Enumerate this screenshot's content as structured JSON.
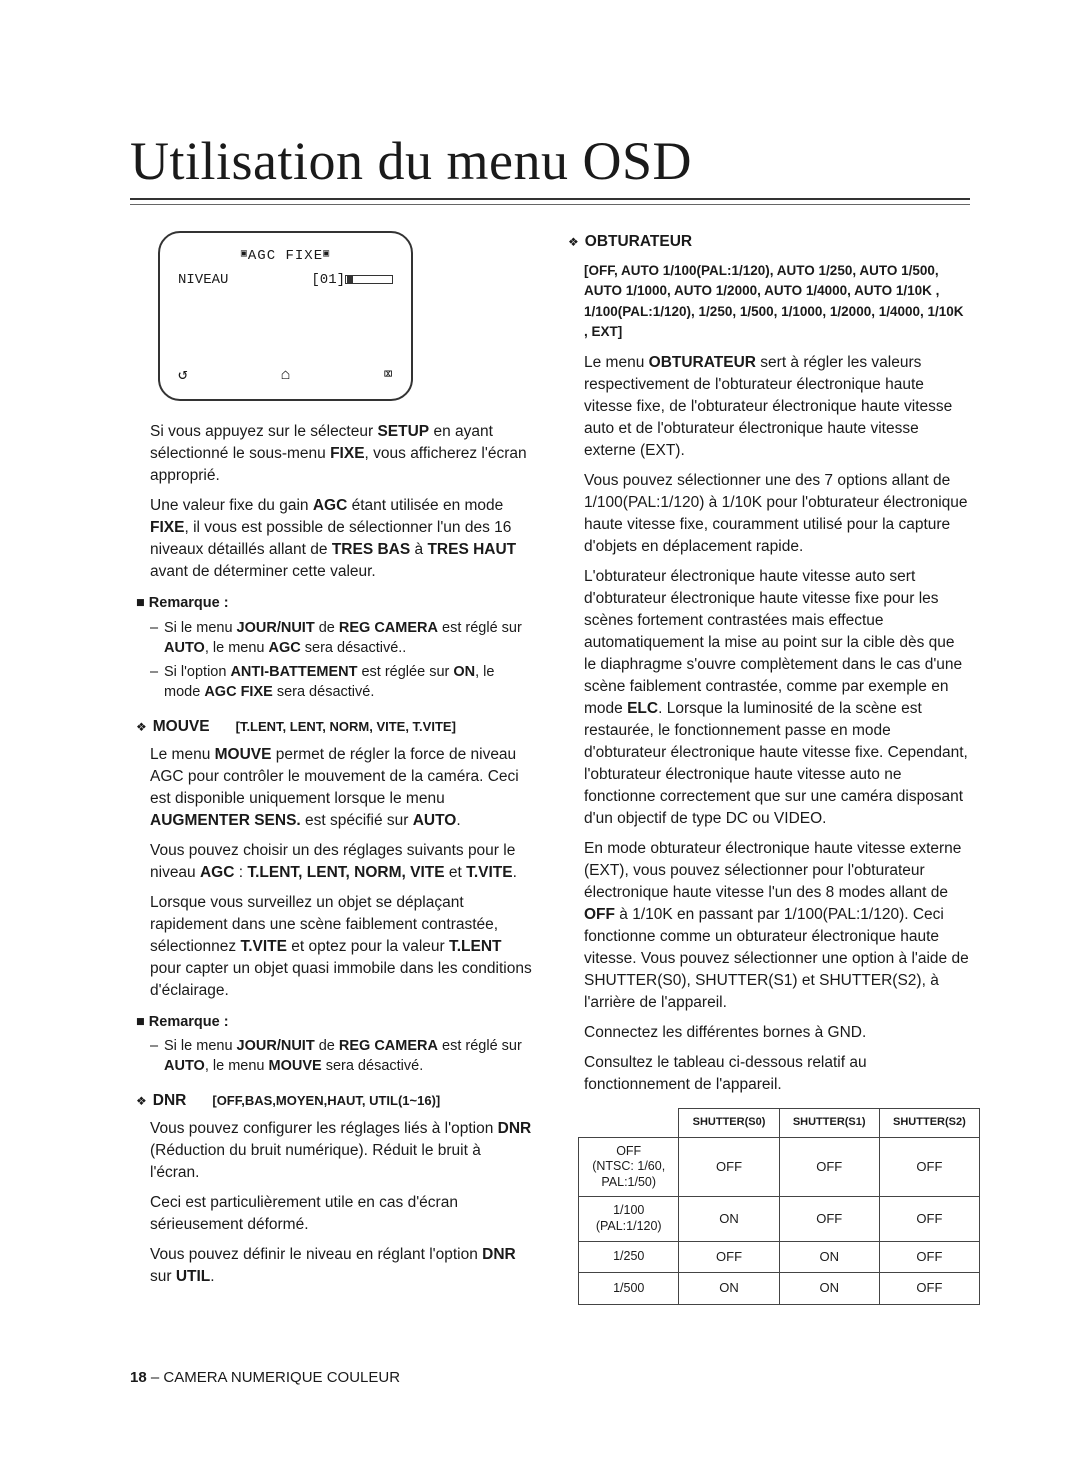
{
  "title": "Utilisation du menu OSD",
  "osd": {
    "header": "AGC FIXE",
    "row_label": "NIVEAU",
    "row_value": "[01]",
    "icon1": "↺",
    "icon2": "⌂",
    "icon3": "⌧"
  },
  "left": {
    "para1_a": "Si vous appuyez sur le sélecteur ",
    "para1_b": "SETUP",
    "para1_c": " en ayant sélectionné le sous-menu ",
    "para1_d": "FIXE",
    "para1_e": ", vous afficherez l'écran approprié.",
    "para2_a": "Une valeur fixe du gain ",
    "para2_b": "AGC",
    "para2_c": " étant utilisée en mode ",
    "para2_d": "FIXE",
    "para2_e": ", il vous est possible de sélectionner l'un des 16 niveaux détaillés allant de ",
    "para2_f": "TRES BAS",
    "para2_g": " à ",
    "para2_h": "TRES HAUT",
    "para2_i": " avant de déterminer cette valeur.",
    "note1_label": "Remarque :",
    "note1_items": [
      "Si le menu JOUR/NUIT de REG CAMERA est réglé sur AUTO, le menu AGC sera désactivé..",
      "Si l'option ANTI-BATTEMENT est réglée sur ON, le mode AGC FIXE sera désactivé."
    ],
    "mouve": {
      "name": "MOUVE",
      "opts": "[T.LENT, LENT, NORM, VITE, T.VITE]",
      "p1_a": "Le menu ",
      "p1_b": "MOUVE",
      "p1_c": " permet de régler la force de niveau AGC pour contrôler le mouvement de la caméra. Ceci est disponible uniquement lorsque le menu ",
      "p1_d": "AUGMENTER SENS.",
      "p1_e": " est spécifié sur ",
      "p1_f": "AUTO",
      "p1_g": ".",
      "p2_a": "Vous pouvez choisir un des réglages suivants pour le niveau ",
      "p2_b": "AGC",
      "p2_c": " : ",
      "p2_d": "T.LENT, LENT, NORM, VITE",
      "p2_e": " et ",
      "p2_f": "T.VITE",
      "p2_g": ".",
      "p3_a": "Lorsque vous surveillez un objet se déplaçant rapidement dans une scène faiblement contrastée, sélectionnez ",
      "p3_b": "T.VITE",
      "p3_c": " et optez pour la valeur ",
      "p3_d": "T.LENT",
      "p3_e": " pour capter un objet quasi immobile dans les conditions d'éclairage."
    },
    "note2_label": "Remarque :",
    "note2_items": [
      "Si le menu JOUR/NUIT de REG CAMERA est réglé sur AUTO, le menu MOUVE sera désactivé."
    ],
    "dnr": {
      "name": "DNR",
      "opts": "[OFF,BAS,MOYEN,HAUT, UTIL(1~16)]",
      "p1_a": "Vous pouvez configurer les réglages liés à l'option ",
      "p1_b": "DNR",
      "p1_c": " (Réduction du bruit numérique). Réduit le bruit à l'écran.",
      "p2": "Ceci est particulièrement utile en cas d'écran sérieusement déformé.",
      "p3_a": "Vous pouvez définir le niveau en réglant l'option ",
      "p3_b": "DNR",
      "p3_c": " sur ",
      "p3_d": "UTIL",
      "p3_e": "."
    }
  },
  "right": {
    "obtu_name": "OBTURATEUR",
    "obtu_opts": "[OFF, AUTO 1/100(PAL:1/120), AUTO 1/250, AUTO 1/500, AUTO 1/1000, AUTO 1/2000, AUTO 1/4000, AUTO 1/10K , 1/100(PAL:1/120), 1/250, 1/500, 1/1000, 1/2000, 1/4000, 1/10K , EXT]",
    "p1_a": "Le menu ",
    "p1_b": "OBTURATEUR",
    "p1_c": " sert à régler les valeurs respectivement de l'obturateur électronique haute vitesse fixe, de l'obturateur électronique haute vitesse auto et de l'obturateur électronique haute vitesse externe (EXT).",
    "p2": "Vous pouvez sélectionner une des 7 options allant de 1/100(PAL:1/120) à 1/10K pour l'obturateur électronique haute vitesse fixe, couramment utilisé pour la capture d'objets en déplacement rapide.",
    "p3_a": "L'obturateur électronique haute vitesse auto sert d'obturateur électronique haute vitesse fixe pour les scènes fortement contrastées mais effectue automatiquement la mise au point sur la cible dès que le diaphragme s'ouvre complètement dans le cas d'une scène faiblement contrastée, comme par exemple en mode ",
    "p3_b": "ELC",
    "p3_c": ". Lorsque la luminosité de la scène est restaurée, le fonctionnement passe en mode d'obturateur électronique haute vitesse fixe. Cependant, l'obturateur électronique haute vitesse auto ne fonctionne correctement que sur une caméra disposant d'un objectif de type DC ou VIDEO.",
    "p4_a": "En mode obturateur électronique haute vitesse externe (EXT), vous pouvez sélectionner pour l'obturateur électronique haute vitesse l'un des 8 modes allant de ",
    "p4_b": "OFF",
    "p4_c": " à 1/10K en passant par 1/100(PAL:1/120). Ceci fonctionne comme un obturateur électronique haute vitesse. Vous pouvez sélectionner une option à l'aide de SHUTTER(S0), SHUTTER(S1) et SHUTTER(S2), à l'arrière de l'appareil.",
    "p5": "Connectez les différentes bornes à GND.",
    "p6": "Consultez le tableau ci-dessous relatif au fonctionnement de l'appareil.",
    "table": {
      "headers": [
        "",
        "SHUTTER(S0)",
        "SHUTTER(S1)",
        "SHUTTER(S2)"
      ],
      "rows": [
        {
          "label": "OFF\n(NTSC: 1/60,\nPAL:1/50)",
          "cells": [
            "OFF",
            "OFF",
            "OFF"
          ]
        },
        {
          "label": "1/100\n(PAL:1/120)",
          "cells": [
            "ON",
            "OFF",
            "OFF"
          ]
        },
        {
          "label": "1/250",
          "cells": [
            "OFF",
            "ON",
            "OFF"
          ]
        },
        {
          "label": "1/500",
          "cells": [
            "ON",
            "ON",
            "OFF"
          ]
        }
      ]
    }
  },
  "footer": {
    "page": "18",
    "sep": " – ",
    "text": "CAMERA NUMERIQUE COULEUR"
  }
}
